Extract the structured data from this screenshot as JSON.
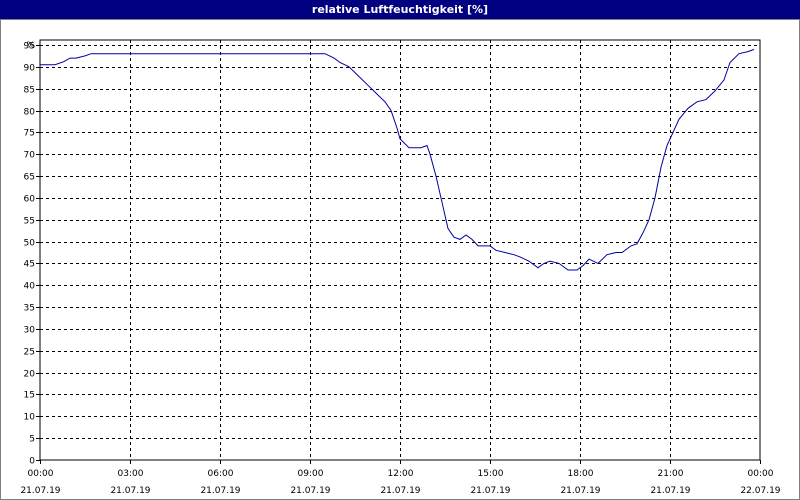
{
  "chart_data": {
    "type": "line",
    "title": "relative Luftfeuchtigkeit [%]",
    "ylabel": "%",
    "ylim": [
      0,
      95
    ],
    "yticks": [
      0,
      5,
      10,
      15,
      20,
      25,
      30,
      35,
      40,
      45,
      50,
      55,
      60,
      65,
      70,
      75,
      80,
      85,
      90,
      95
    ],
    "xlim_hours": [
      0,
      24
    ],
    "xticks": [
      {
        "hour": 0,
        "time": "00:00",
        "date": "21.07.19"
      },
      {
        "hour": 3,
        "time": "03:00",
        "date": "21.07.19"
      },
      {
        "hour": 6,
        "time": "06:00",
        "date": "21.07.19"
      },
      {
        "hour": 9,
        "time": "09:00",
        "date": "21.07.19"
      },
      {
        "hour": 12,
        "time": "12:00",
        "date": "21.07.19"
      },
      {
        "hour": 15,
        "time": "15:00",
        "date": "21.07.19"
      },
      {
        "hour": 18,
        "time": "18:00",
        "date": "21.07.19"
      },
      {
        "hour": 21,
        "time": "21:00",
        "date": "21.07.19"
      },
      {
        "hour": 24,
        "time": "00:00",
        "date": "22.07.19"
      }
    ],
    "grid": true,
    "series": [
      {
        "color": "#0000a0",
        "x_hours": [
          0,
          0.5,
          0.8,
          1.0,
          1.2,
          1.5,
          1.7,
          2.0,
          3.0,
          4.0,
          5.0,
          6.0,
          7.0,
          8.0,
          9.0,
          9.5,
          9.8,
          10.0,
          10.3,
          10.6,
          10.9,
          11.2,
          11.5,
          11.7,
          11.9,
          12.0,
          12.3,
          12.7,
          12.9,
          13.0,
          13.2,
          13.4,
          13.6,
          13.8,
          14.0,
          14.2,
          14.4,
          14.6,
          14.8,
          15.0,
          15.2,
          15.5,
          15.8,
          16.0,
          16.3,
          16.6,
          16.8,
          17.0,
          17.3,
          17.6,
          17.9,
          18.1,
          18.3,
          18.6,
          18.9,
          19.2,
          19.4,
          19.7,
          19.9,
          20.1,
          20.3,
          20.5,
          20.7,
          20.9,
          21.1,
          21.3,
          21.6,
          21.9,
          22.2,
          22.5,
          22.8,
          23.0,
          23.3,
          23.6,
          23.8
        ],
        "values": [
          90.5,
          90.5,
          91.2,
          92,
          92,
          92.5,
          93,
          93,
          93,
          93,
          93,
          93,
          93,
          93,
          93,
          93,
          92,
          91,
          90,
          88,
          86,
          84,
          82,
          80,
          76,
          73.5,
          71.5,
          71.5,
          72,
          70,
          65,
          59,
          53,
          51,
          50.5,
          51.5,
          50.5,
          49,
          49,
          49,
          48,
          47.5,
          47,
          46.5,
          45.5,
          44,
          45,
          45.5,
          45,
          43.5,
          43.5,
          44.5,
          46,
          45,
          47,
          47.5,
          47.5,
          49,
          49.5,
          52,
          55,
          60,
          67,
          72,
          75,
          78,
          80.5,
          82,
          82.5,
          84.5,
          87,
          91,
          93,
          93.5,
          94
        ]
      }
    ]
  }
}
